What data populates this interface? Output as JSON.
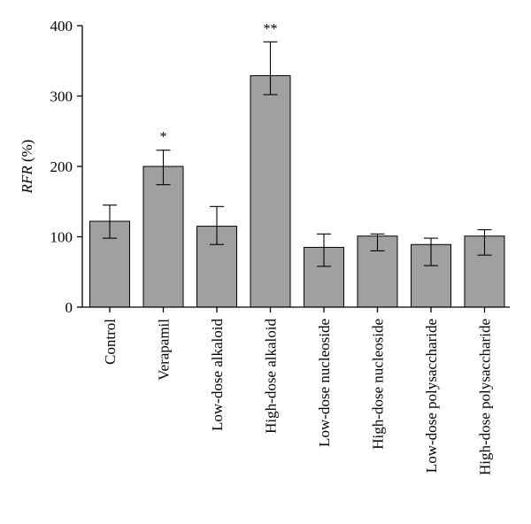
{
  "chart_data": {
    "type": "bar",
    "categories": [
      "Control",
      "Verapamil",
      "Low-dose alkaloid",
      "High-dose alkaloid",
      "Low-dose nucleoside",
      "High-dose nucleoside",
      "Low-dose polysaccharide",
      "High-dose polysaccharide"
    ],
    "values": [
      122,
      200,
      115,
      329,
      85,
      101,
      89,
      101
    ],
    "error_low": [
      98,
      174,
      89,
      302,
      58,
      80,
      59,
      74
    ],
    "error_high": [
      145,
      223,
      143,
      377,
      104,
      104,
      98,
      110
    ],
    "significance": [
      "",
      "*",
      "",
      "**",
      "",
      "",
      "",
      ""
    ],
    "ylabel": {
      "italic_part": "RFR",
      "unit_part": " (%)"
    },
    "xlabel": "",
    "ylim": [
      0,
      400
    ],
    "yticks": [
      "0",
      "100",
      "200",
      "300",
      "400"
    ],
    "grid": false,
    "bar_color": "#a0a0a0",
    "edge_color": "#000000"
  }
}
